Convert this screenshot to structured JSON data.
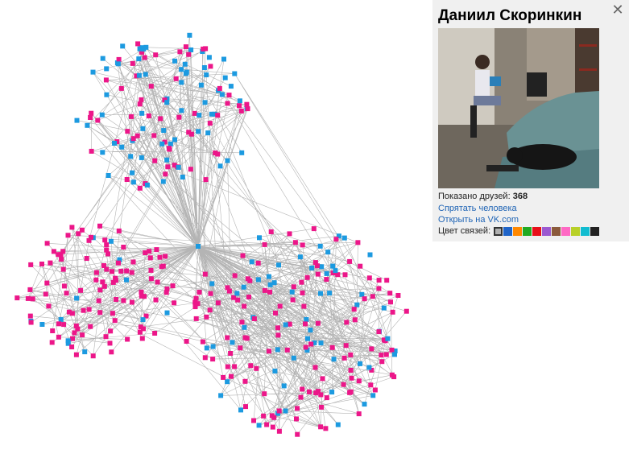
{
  "panel": {
    "title": "Даниил Скоринкин",
    "close_label": "✕",
    "friends_label": "Показано друзей:",
    "friends_count": "368",
    "hide_person": "Спрятать человека",
    "open_vk": "Открыть на VK.com",
    "link_color_label": "Цвет связей:",
    "photo": "photo-of-person-with-laptop-and-black-cat",
    "colors": [
      "#b0b0b0",
      "#1f64c8",
      "#ff8800",
      "#22aa22",
      "#e8101a",
      "#9b59d0",
      "#8b5a3c",
      "#ff69c4",
      "#b8d028",
      "#11bcd0",
      "#222222"
    ]
  },
  "graph": {
    "node_colors": {
      "blue": "#1c9ae0",
      "pink": "#ec1689",
      "edge": "#b4b4b4"
    }
  }
}
